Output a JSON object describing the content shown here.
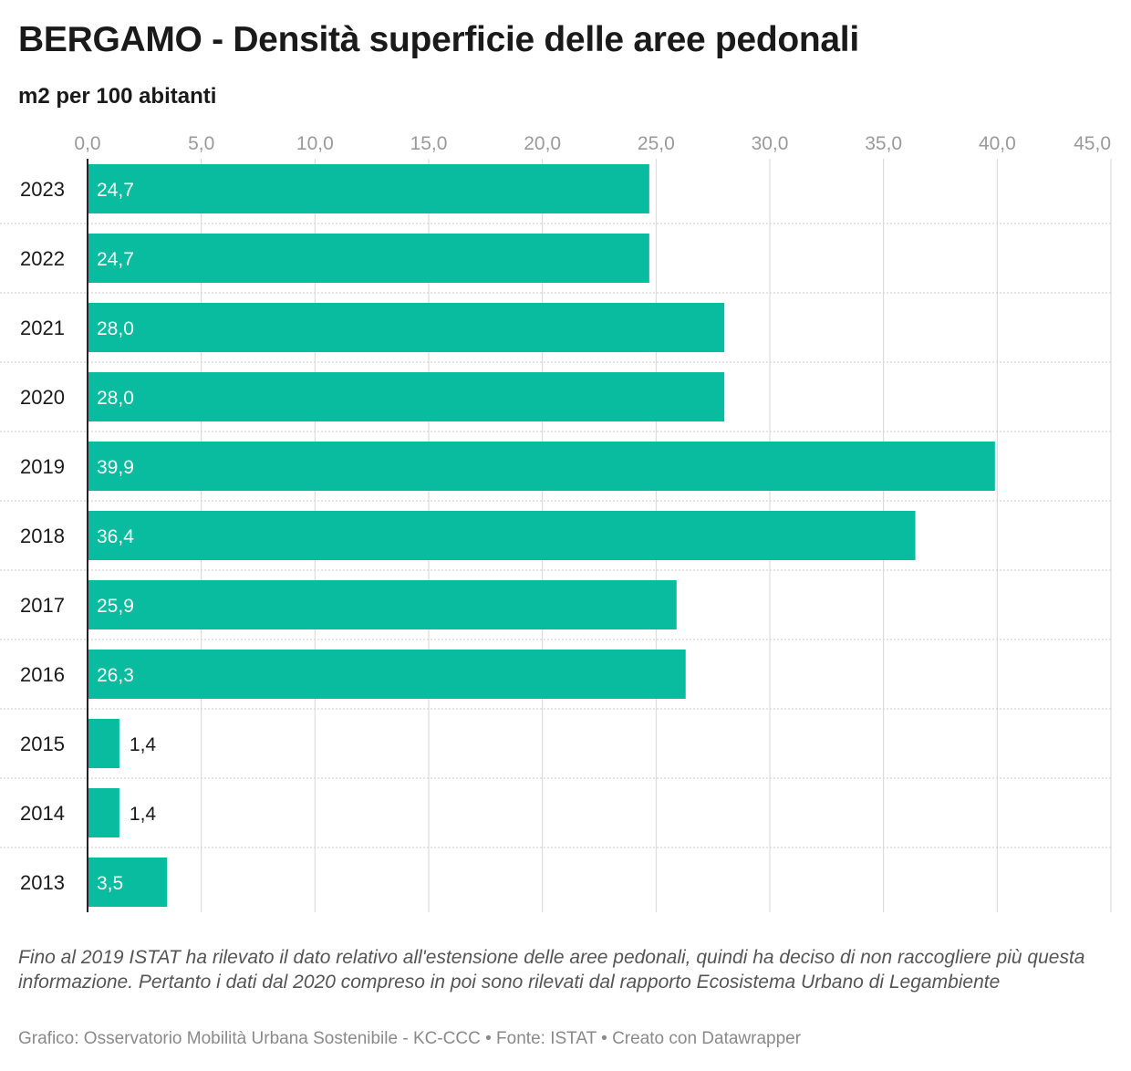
{
  "title": "BERGAMO - Densità superficie delle aree pedonali",
  "subtitle": "m2 per 100 abitanti",
  "note": "Fino al 2019 ISTAT ha rilevato il dato relativo all'estensione delle aree pedonali, quindi ha deciso di non raccogliere più questa informazione. Pertanto i dati dal 2020 compreso in poi sono rilevati dal rapporto Ecosistema Urbano di Legambiente",
  "source": "Grafico: Osservatorio Mobilità Urbana Sostenibile - KC-CCC • Fonte: ISTAT • Creato con Datawrapper",
  "colors": {
    "bar": "#0abc9f",
    "label_inside": "#ffffff",
    "label_outside": "#1a1a1a",
    "grid": "#d6d6d6"
  },
  "chart_data": {
    "type": "bar",
    "orientation": "horizontal",
    "categories": [
      "2023",
      "2022",
      "2021",
      "2020",
      "2019",
      "2018",
      "2017",
      "2016",
      "2015",
      "2014",
      "2013"
    ],
    "values": [
      24.7,
      24.7,
      28.0,
      28.0,
      39.9,
      36.4,
      25.9,
      26.3,
      1.4,
      1.4,
      3.5
    ],
    "value_labels": [
      "24,7",
      "24,7",
      "28,0",
      "28,0",
      "39,9",
      "36,4",
      "25,9",
      "26,3",
      "1,4",
      "1,4",
      "3,5"
    ],
    "xlim": [
      0,
      45
    ],
    "ticks": [
      0,
      5,
      10,
      15,
      20,
      25,
      30,
      35,
      40,
      45
    ],
    "tick_labels": [
      "0,0",
      "5,0",
      "10,0",
      "15,0",
      "20,0",
      "25,0",
      "30,0",
      "35,0",
      "40,0",
      "45,0"
    ],
    "axis_position": "top",
    "grid": true
  }
}
